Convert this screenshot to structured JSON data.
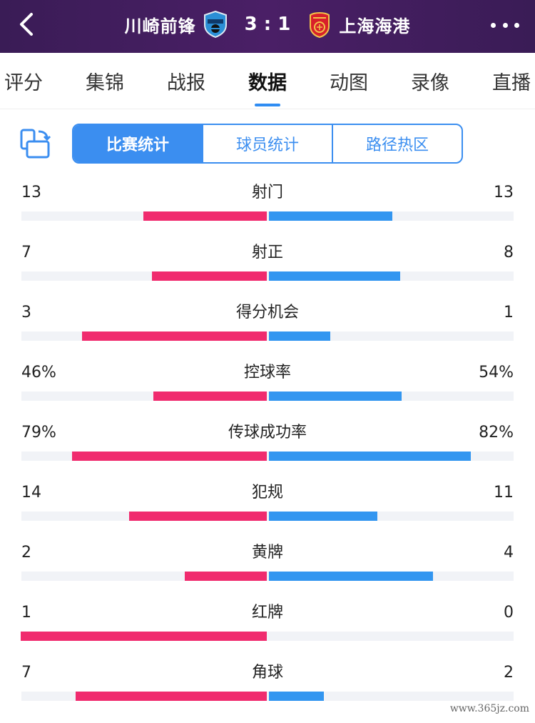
{
  "header": {
    "home_team": "川崎前锋",
    "score": "3 : 1",
    "away_team": "上海海港"
  },
  "tabs": [
    {
      "label": "评分"
    },
    {
      "label": "集锦"
    },
    {
      "label": "战报"
    },
    {
      "label": "数据",
      "active": true
    },
    {
      "label": "动图"
    },
    {
      "label": "录像"
    },
    {
      "label": "直播"
    }
  ],
  "segments": [
    {
      "label": "比赛统计",
      "active": true
    },
    {
      "label": "球员统计"
    },
    {
      "label": "路径热区"
    }
  ],
  "stats": [
    {
      "label": "射门",
      "home": "13",
      "away": "13",
      "home_fill": 0.5,
      "away_fill": 0.5
    },
    {
      "label": "射正",
      "home": "7",
      "away": "8",
      "home_fill": 0.467,
      "away_fill": 0.533
    },
    {
      "label": "得分机会",
      "home": "3",
      "away": "1",
      "home_fill": 0.75,
      "away_fill": 0.25
    },
    {
      "label": "控球率",
      "home": "46%",
      "away": "54%",
      "home_fill": 0.46,
      "away_fill": 0.54
    },
    {
      "label": "传球成功率",
      "home": "79%",
      "away": "82%",
      "home_fill": 0.79,
      "away_fill": 0.82
    },
    {
      "label": "犯规",
      "home": "14",
      "away": "11",
      "home_fill": 0.56,
      "away_fill": 0.44
    },
    {
      "label": "黄牌",
      "home": "2",
      "away": "4",
      "home_fill": 0.333,
      "away_fill": 0.667
    },
    {
      "label": "红牌",
      "home": "1",
      "away": "0",
      "home_fill": 1.0,
      "away_fill": 0.0
    },
    {
      "label": "角球",
      "home": "7",
      "away": "2",
      "home_fill": 0.778,
      "away_fill": 0.222
    }
  ],
  "colors": {
    "home_bar": "#f02b6e",
    "away_bar": "#3396f0",
    "header_bg": "#3f1d5c",
    "accent": "#3b8ef0"
  },
  "icons": {
    "back": "chevron-left-icon",
    "more": "more-dots-icon",
    "layout": "layout-switch-icon",
    "home_crest": "kawasaki-frontale-crest-icon",
    "away_crest": "shanghai-port-crest-icon"
  },
  "watermark": "www.365jz.com"
}
